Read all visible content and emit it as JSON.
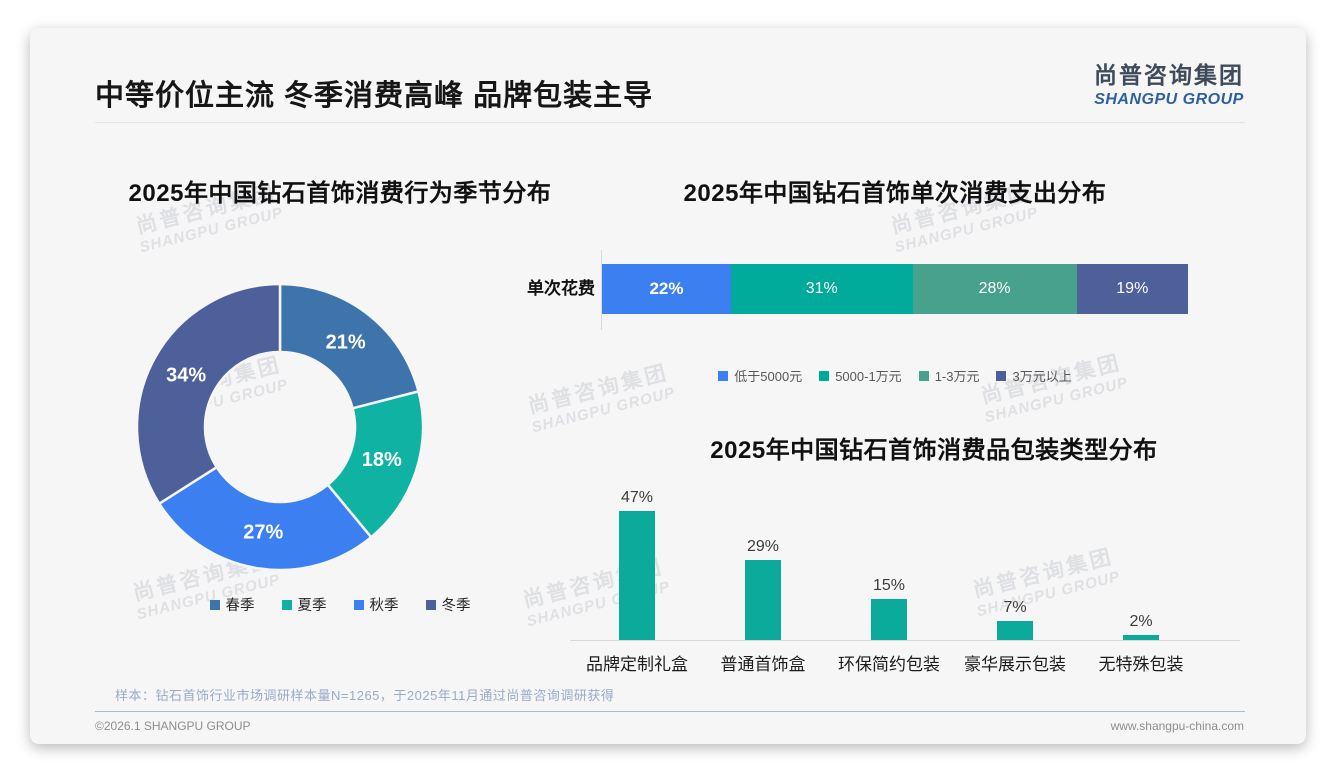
{
  "page": {
    "title": "中等价位主流 冬季消费高峰 品牌包装主导",
    "logo": {
      "cn": "尚普咨询集团",
      "en": "SHANGPU GROUP"
    },
    "watermark": {
      "cn": "尚普咨询集团",
      "en": "SHANGPU GROUP"
    },
    "footnote": "样本：钻石首饰行业市场调研样本量N=1265，于2025年11月通过尚普咨询调研获得",
    "footer_left": "©2026.1 SHANGPU GROUP",
    "footer_right": "www.shangpu-china.com"
  },
  "colors": {
    "card_background": "#f6f6f7",
    "steel_blue": "#3e74ac",
    "teal": "#10b2a3",
    "bright_blue": "#3c7ff1",
    "slate_blue": "#4e6099",
    "sage_green": "#47a18b",
    "bar_teal": "#0caa9b"
  },
  "chart_data": [
    {
      "type": "pie",
      "subtype": "donut",
      "title": "2025年中国钻石首饰消费行为季节分布",
      "labels": [
        "春季",
        "夏季",
        "秋季",
        "冬季"
      ],
      "values": [
        21,
        18,
        27,
        34
      ],
      "unit": "%",
      "colors": [
        "#3e74ac",
        "#10b2a3",
        "#3c7ff1",
        "#4e6099"
      ],
      "legend_position": "bottom",
      "start_angle": "top",
      "direction": "clockwise"
    },
    {
      "type": "bar",
      "subtype": "horizontal-stacked",
      "title": "2025年中国钻石首饰单次消费支出分布",
      "category": "单次花费",
      "unit": "%",
      "series": [
        {
          "name": "低于5000元",
          "value": 22,
          "color": "#3c7ff1"
        },
        {
          "name": "5000-1万元",
          "value": 31,
          "color": "#00ab9b"
        },
        {
          "name": "1-3万元",
          "value": 28,
          "color": "#47a18b"
        },
        {
          "name": "3万元以上",
          "value": 19,
          "color": "#4e6099"
        }
      ],
      "legend_position": "bottom",
      "xlim": [
        0,
        100
      ]
    },
    {
      "type": "bar",
      "subtype": "vertical",
      "title": "2025年中国钻石首饰消费品包装类型分布",
      "categories": [
        "品牌定制礼盒",
        "普通首饰盒",
        "环保简约包装",
        "豪华展示包装",
        "无特殊包装"
      ],
      "values": [
        47,
        29,
        15,
        7,
        2
      ],
      "unit": "%",
      "bar_color": "#0caa9b",
      "value_labels": true,
      "grid": false
    }
  ]
}
